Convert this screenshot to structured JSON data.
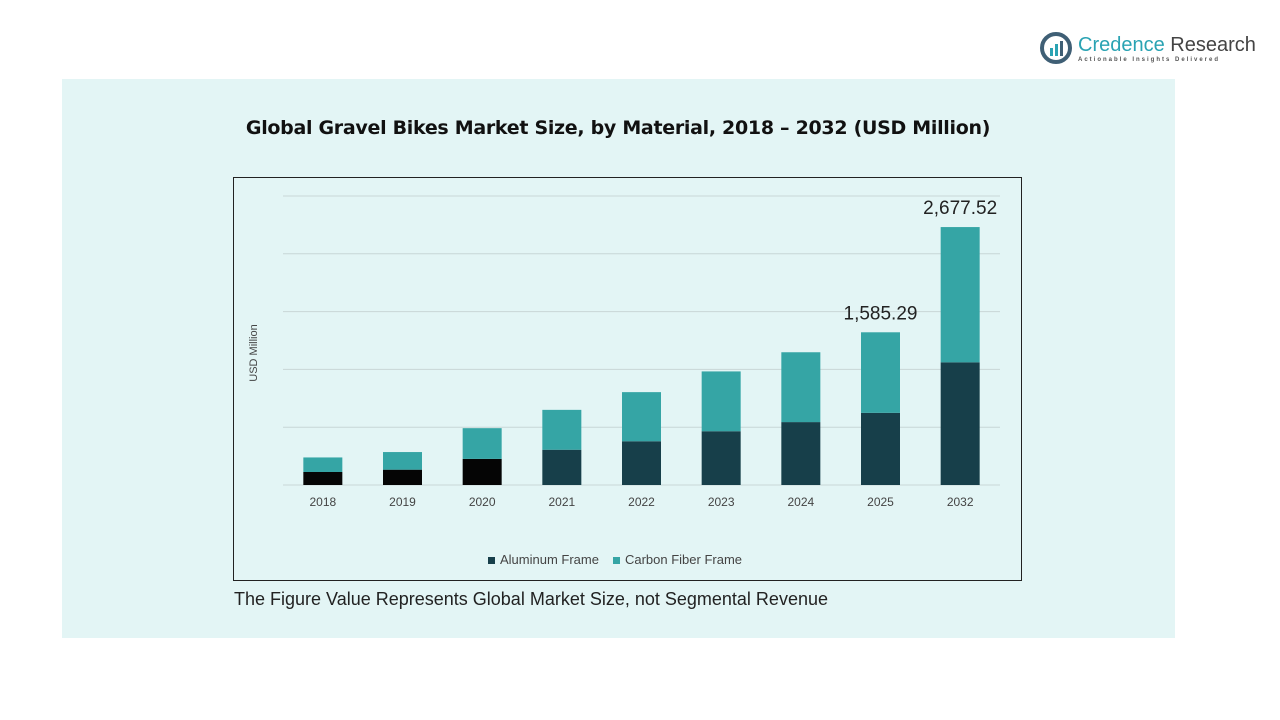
{
  "logo": {
    "name_part1": "Credence",
    "name_part2": "Research",
    "tagline": "Actionable Insights Delivered"
  },
  "footnote": "The Figure Value Represents Global Market Size, not Segmental Revenue",
  "colors": {
    "aluminum": "#173f4a",
    "aluminum_early": "#050505",
    "carbon": "#35a5a5",
    "panel": "#e3f5f5"
  },
  "chart_data": {
    "type": "bar",
    "stacked": true,
    "title": "Global Gravel Bikes Market Size, by Material, 2018 – 2032 (USD Million)",
    "xlabel": "",
    "ylabel": "USD Million",
    "ylim": [
      0,
      3000
    ],
    "grid": true,
    "legend_position": "bottom",
    "categories": [
      "2018",
      "2019",
      "2020",
      "2021",
      "2022",
      "2023",
      "2024",
      "2025",
      "2032"
    ],
    "series": [
      {
        "name": "Aluminum Frame",
        "values": [
          135,
          159,
          271,
          366,
          454,
          558,
          653,
          749.0,
          1273.33
        ]
      },
      {
        "name": "Carbon Fiber Frame",
        "values": [
          151,
          183,
          319,
          414,
          510,
          621,
          725,
          836.29,
          1404.19
        ]
      }
    ],
    "data_labels": [
      {
        "category": "2025",
        "text": "1,585.29"
      },
      {
        "category": "2032",
        "text": "2,677.52"
      }
    ]
  }
}
